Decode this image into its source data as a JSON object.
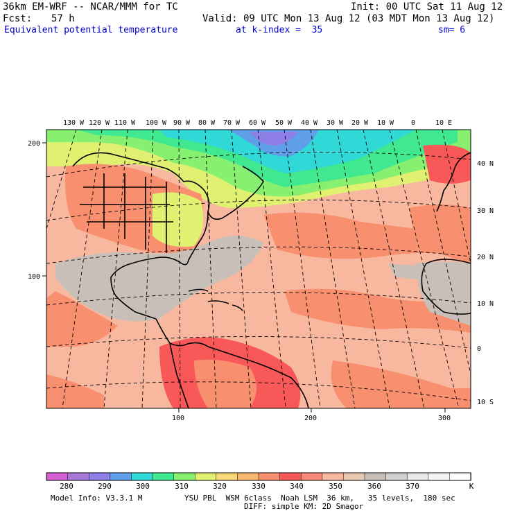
{
  "header": {
    "model": "36km EM-WRF -- NCAR/MMM for TC",
    "init": "Init: 00 UTC Sat 11 Aug 12",
    "fcst_label": "Fcst:",
    "fcst_value": "57 h",
    "valid": "Valid: 09 UTC Mon 13 Aug 12 (03 MDT Mon 13 Aug 12)",
    "field": "Equivalent potential temperature",
    "level": "at k-index =  35",
    "smoothing": "sm= 6"
  },
  "map": {
    "lon_labels": [
      "130 W",
      "120 W",
      "110 W",
      "100 W",
      "90 W",
      "80 W",
      "70 W",
      "60 W",
      "50 W",
      "40 W",
      "30 W",
      "20 W",
      "10 W",
      "0",
      "10 E"
    ],
    "lat_labels": [
      "40 N",
      "30 N",
      "20 N",
      "10 N",
      "0",
      "10 S"
    ],
    "grid_x_ticks": [
      "100",
      "200",
      "300"
    ],
    "grid_y_ticks": [
      "200",
      "100"
    ]
  },
  "colorbar": {
    "labels": [
      "280",
      "290",
      "300",
      "310",
      "320",
      "330",
      "340",
      "350",
      "360",
      "370"
    ],
    "unit": "K",
    "colors": [
      "#d45fd0",
      "#a678d8",
      "#8e7ee8",
      "#5f9ee8",
      "#30d8d8",
      "#40e890",
      "#88f070",
      "#e0f070",
      "#f8d878",
      "#f8b870",
      "#f89070",
      "#f85858",
      "#f88878",
      "#f8b8a0",
      "#e8c8b0",
      "#c8c0b8",
      "#d0d0d0",
      "#e8e8e8",
      "#f4f4f4",
      "#ffffff"
    ]
  },
  "footer": {
    "model_info": "Model Info: V3.3.1 M",
    "physics1": "YSU PBL  WSM 6class  Noah LSM  36 km,   35 levels,  180 sec",
    "physics2": "DIFF: simple KM: 2D Smagor"
  }
}
